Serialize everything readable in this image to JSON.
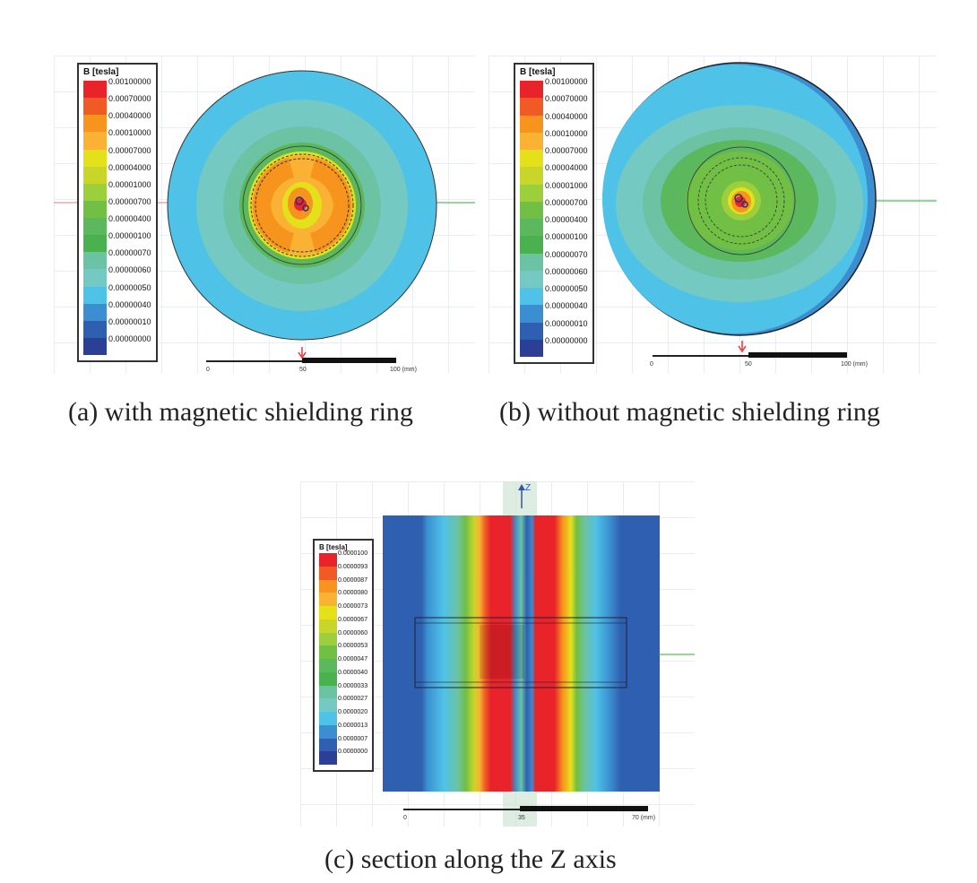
{
  "colors": [
    "#e8232a",
    "#f05a24",
    "#f7941d",
    "#f9b233",
    "#e4e11b",
    "#c9d629",
    "#9ccf3b",
    "#71bf44",
    "#5cb85c",
    "#49b24f",
    "#6cc3a3",
    "#75c9c3",
    "#4fc2e8",
    "#3b8fd0",
    "#2f5fb0",
    "#2b3f97"
  ],
  "panel_a": {
    "legend": {
      "title": "B [tesla]",
      "labels": [
        "0.00100000",
        "0.00070000",
        "0.00040000",
        "0.00010000",
        "0.00007000",
        "0.00004000",
        "0.00001000",
        "0.00000700",
        "0.00000400",
        "0.00000100",
        "0.00000070",
        "0.00000060",
        "0.00000050",
        "0.00000040",
        "0.00000010",
        "0.00000000"
      ]
    },
    "scale": {
      "ticks": [
        "0",
        "50",
        "100 (mm)"
      ]
    },
    "caption": "(a) with magnetic shielding ring"
  },
  "panel_b": {
    "legend": {
      "title": "B [tesla]",
      "labels": [
        "0.00100000",
        "0.00070000",
        "0.00040000",
        "0.00010000",
        "0.00007000",
        "0.00004000",
        "0.00001000",
        "0.00000700",
        "0.00000400",
        "0.00000100",
        "0.00000070",
        "0.00000060",
        "0.00000050",
        "0.00000040",
        "0.00000010",
        "0.00000000"
      ]
    },
    "scale": {
      "ticks": [
        "0",
        "50",
        "100 (mm)"
      ]
    },
    "caption": "(b) without magnetic shielding ring"
  },
  "panel_c": {
    "legend": {
      "title": "B [tesla]",
      "labels": [
        "0.0000100",
        "0.0000093",
        "0.0000087",
        "0.0000080",
        "0.0000073",
        "0.0000067",
        "0.0000060",
        "0.0000053",
        "0.0000047",
        "0.0000040",
        "0.0000033",
        "0.0000027",
        "0.0000020",
        "0.0000013",
        "0.0000007",
        "0.0000000"
      ]
    },
    "axis_label": "Z",
    "scale": {
      "ticks": [
        "0",
        "35",
        "70 (mm)"
      ]
    },
    "caption": "(c) section along the Z axis"
  }
}
